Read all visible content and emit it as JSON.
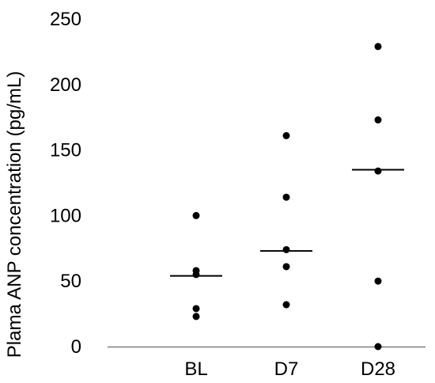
{
  "chart_data": {
    "type": "scatter",
    "title": "",
    "xlabel": "",
    "ylabel": "Plama ANP concentration (pg/mL)",
    "ylim": [
      0,
      250
    ],
    "yticks": [
      0,
      50,
      100,
      150,
      200,
      250
    ],
    "categories": [
      "BL",
      "D7",
      "D28"
    ],
    "grid": false,
    "legend": "none",
    "points": [
      [
        100,
        58,
        55,
        29,
        23
      ],
      [
        161,
        114,
        74,
        61,
        32
      ],
      [
        229,
        173,
        134,
        50,
        0
      ]
    ],
    "medians": [
      54,
      73,
      135
    ],
    "colors": {
      "point": "#000000",
      "median": "#000000",
      "axis": "#7f7f7f"
    }
  }
}
